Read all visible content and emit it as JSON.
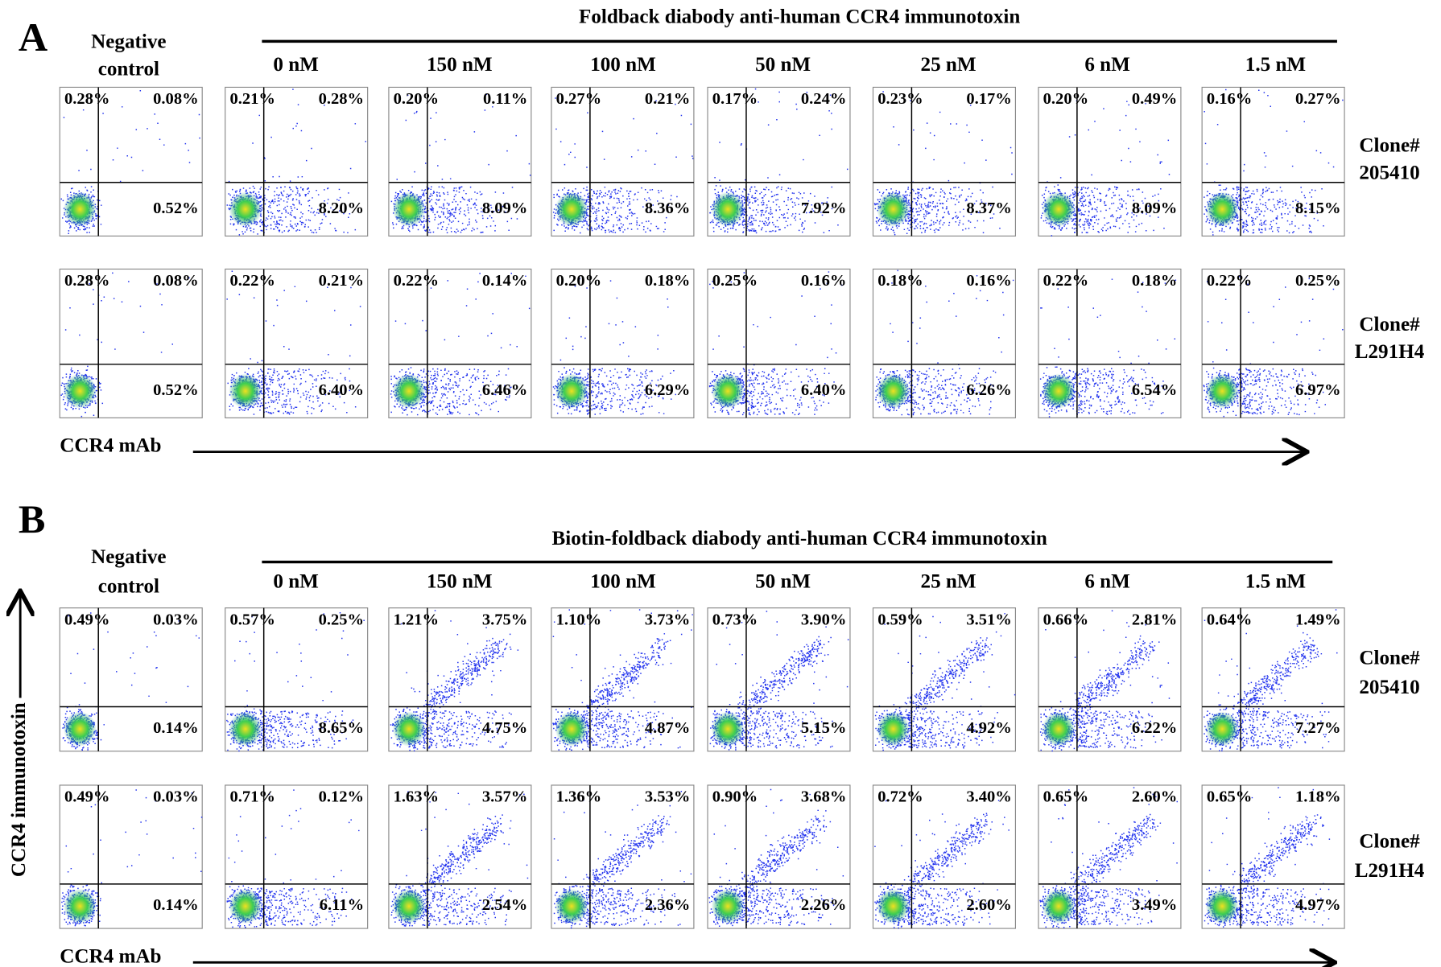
{
  "panels": [
    {
      "letter": "A",
      "title": "Foldback diabody anti-human CCR4 immunotoxin",
      "negative_control": [
        "Negative",
        "control"
      ],
      "columns": [
        "0 nM",
        "150 nM",
        "100 nM",
        "50 nM",
        "25 nM",
        "6 nM",
        "1.5 nM"
      ],
      "rows": [
        {
          "label": [
            "Clone#",
            "205410"
          ],
          "plots": [
            [
              "0.28%",
              "0.08%",
              "0.52%"
            ],
            [
              "0.21%",
              "0.28%",
              "8.20%"
            ],
            [
              "0.20%",
              "0.11%",
              "8.09%"
            ],
            [
              "0.27%",
              "0.21%",
              "8.36%"
            ],
            [
              "0.17%",
              "0.24%",
              "7.92%"
            ],
            [
              "0.23%",
              "0.17%",
              "8.37%"
            ],
            [
              "0.20%",
              "0.49%",
              "8.09%"
            ],
            [
              "0.16%",
              "0.27%",
              "8.15%"
            ]
          ]
        },
        {
          "label": [
            "Clone#",
            "L291H4"
          ],
          "plots": [
            [
              "0.28%",
              "0.08%",
              "0.52%"
            ],
            [
              "0.22%",
              "0.21%",
              "6.40%"
            ],
            [
              "0.22%",
              "0.14%",
              "6.46%"
            ],
            [
              "0.20%",
              "0.18%",
              "6.29%"
            ],
            [
              "0.25%",
              "0.16%",
              "6.40%"
            ],
            [
              "0.18%",
              "0.16%",
              "6.26%"
            ],
            [
              "0.22%",
              "0.18%",
              "6.54%"
            ],
            [
              "0.22%",
              "0.25%",
              "6.97%"
            ]
          ]
        }
      ],
      "x_axis_label": "CCR4 mAb"
    },
    {
      "letter": "B",
      "title": "Biotin-foldback diabody anti-human CCR4 immunotoxin",
      "negative_control": [
        "Negative",
        "control"
      ],
      "columns": [
        "0 nM",
        "150 nM",
        "100 nM",
        "50 nM",
        "25 nM",
        "6 nM",
        "1.5 nM"
      ],
      "rows": [
        {
          "label": [
            "Clone#",
            "205410"
          ],
          "plots": [
            [
              "0.49%",
              "0.03%",
              "0.14%"
            ],
            [
              "0.57%",
              "0.25%",
              "8.65%"
            ],
            [
              "1.21%",
              "3.75%",
              "4.75%"
            ],
            [
              "1.10%",
              "3.73%",
              "4.87%"
            ],
            [
              "0.73%",
              "3.90%",
              "5.15%"
            ],
            [
              "0.59%",
              "3.51%",
              "4.92%"
            ],
            [
              "0.66%",
              "2.81%",
              "6.22%"
            ],
            [
              "0.64%",
              "1.49%",
              "7.27%"
            ]
          ]
        },
        {
          "label": [
            "Clone#",
            "L291H4"
          ],
          "plots": [
            [
              "0.49%",
              "0.03%",
              "0.14%"
            ],
            [
              "0.71%",
              "0.12%",
              "6.11%"
            ],
            [
              "1.63%",
              "3.57%",
              "2.54%"
            ],
            [
              "1.36%",
              "3.53%",
              "2.36%"
            ],
            [
              "0.90%",
              "3.68%",
              "2.26%"
            ],
            [
              "0.72%",
              "3.40%",
              "2.60%"
            ],
            [
              "0.65%",
              "2.60%",
              "3.49%"
            ],
            [
              "0.65%",
              "1.18%",
              "4.97%"
            ]
          ]
        }
      ],
      "x_axis_label": "CCR4 mAb",
      "y_axis_label": "CCR4 immunotoxin"
    }
  ]
}
